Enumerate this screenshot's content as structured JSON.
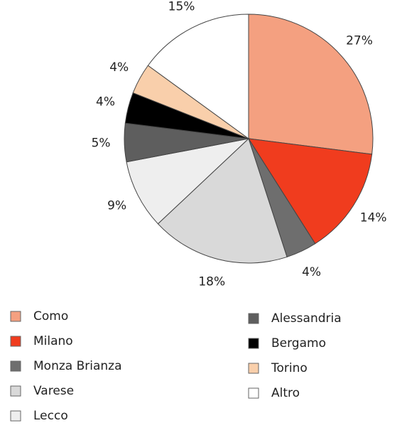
{
  "chart_data": {
    "type": "pie",
    "categories": [
      "Como",
      "Milano",
      "Monza Brianza",
      "Varese",
      "Lecco",
      "Alessandria",
      "Bergamo",
      "Torino",
      "Altro"
    ],
    "values": [
      27,
      14,
      4,
      18,
      9,
      5,
      4,
      4,
      15
    ],
    "value_labels": [
      "27%",
      "14%",
      "4%",
      "18%",
      "9%",
      "5%",
      "4%",
      "4%",
      "15%"
    ],
    "colors": [
      "#f4a080",
      "#f03c1e",
      "#6e6e6e",
      "#d9d9d9",
      "#eeeeee",
      "#5e5e5e",
      "#000000",
      "#f9cfab",
      "#ffffff"
    ],
    "legend_order": [
      0,
      1,
      2,
      3,
      4,
      5,
      6,
      7,
      8
    ]
  }
}
